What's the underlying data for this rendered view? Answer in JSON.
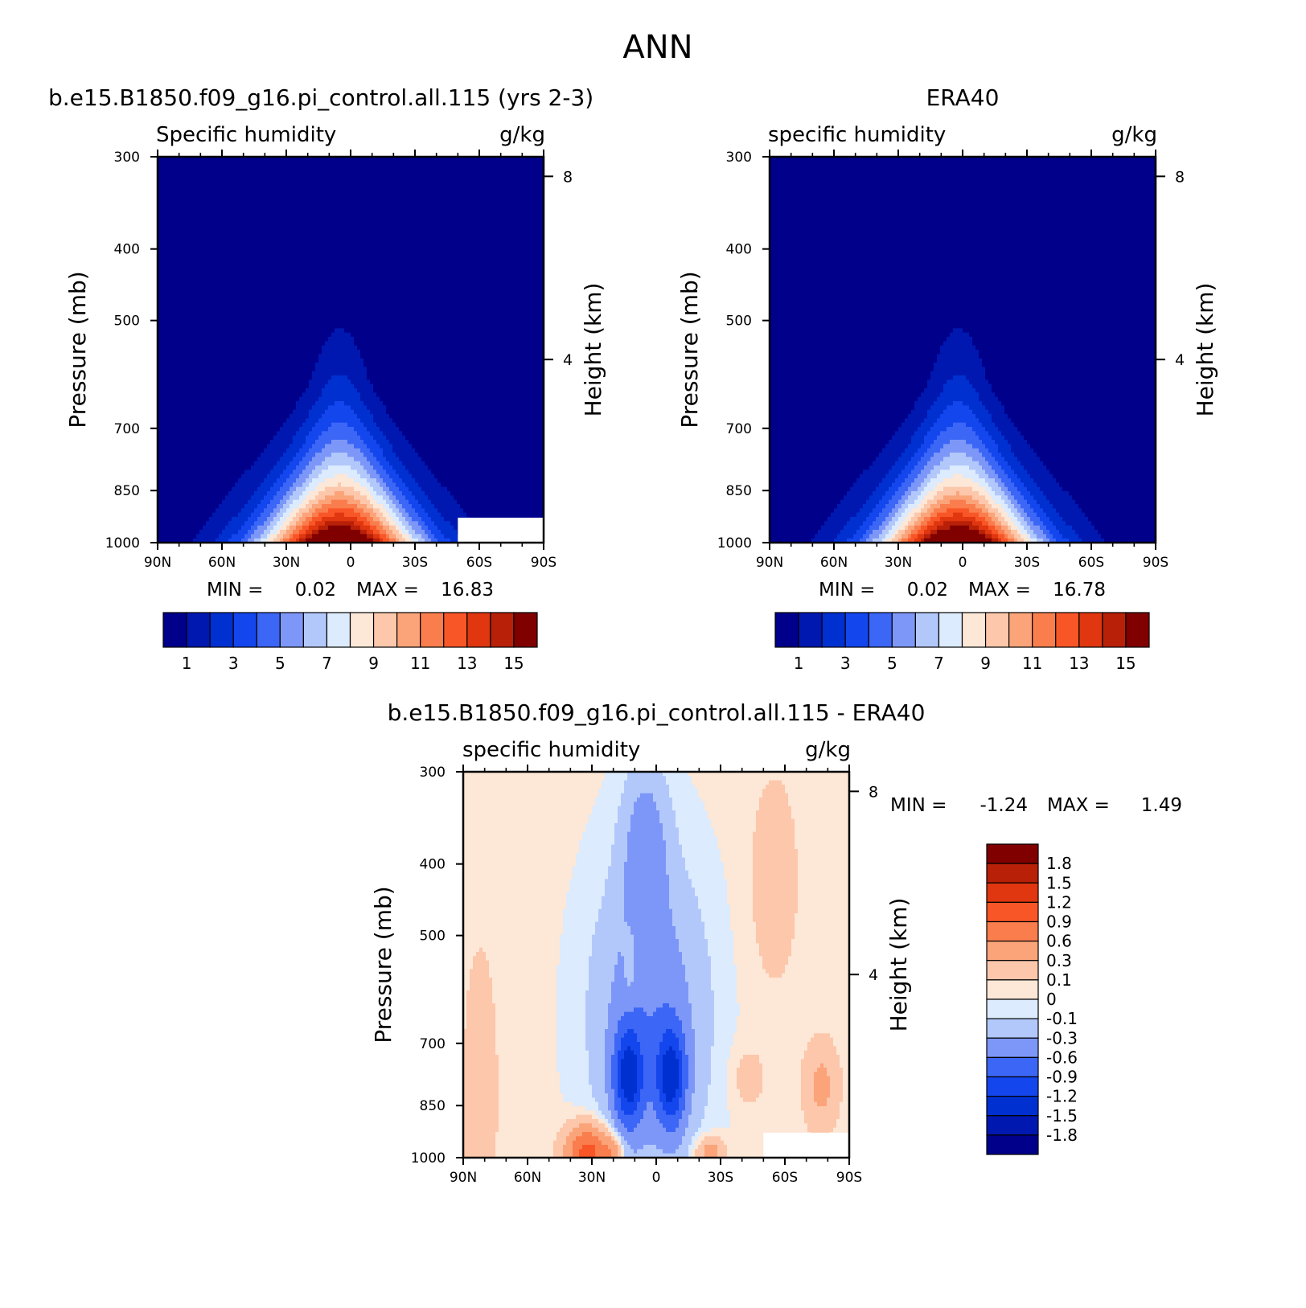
{
  "figure_title": "ANN",
  "colors": {
    "main_scale": [
      "#00008b",
      "#0018b0",
      "#0030d0",
      "#1446ee",
      "#3c66f5",
      "#7d97f8",
      "#b2c8fb",
      "#dcebfd",
      "#fde7d6",
      "#fcc7ab",
      "#fba47a",
      "#fa7d4d",
      "#f95628",
      "#e03710",
      "#b82008",
      "#800000"
    ],
    "diff_scale": [
      "#00008b",
      "#0018b0",
      "#0030d0",
      "#1446ee",
      "#3c66f5",
      "#7d97f8",
      "#b2c8fb",
      "#dcebfd",
      "#fde7d6",
      "#fcc7ab",
      "#fba47a",
      "#fa7d4d",
      "#f95628",
      "#e03710",
      "#b82008",
      "#800000"
    ]
  },
  "chart_data": [
    {
      "type": "heatmap",
      "name": "model",
      "title": "b.e15.B1850.f09_g16.pi_control.all.115 (yrs 2-3)",
      "left_label": "Specific humidity",
      "right_label": "g/kg",
      "ylabel": "Pressure (mb)",
      "ylabel2": "Height (km)",
      "x_ticks": [
        "90N",
        "60N",
        "30N",
        "0",
        "30S",
        "60S",
        "90S"
      ],
      "x_values": [
        90,
        60,
        30,
        0,
        -30,
        -60,
        -90
      ],
      "xlim": [
        90,
        -90
      ],
      "y_ticks": [
        "300",
        "400",
        "500",
        "700",
        "850",
        "1000"
      ],
      "y_values": [
        300,
        400,
        500,
        700,
        850,
        1000
      ],
      "ylim": [
        300,
        1000
      ],
      "height_ticks": [
        "8",
        "4"
      ],
      "height_values_km": [
        8,
        4
      ],
      "min_label": "MIN =",
      "min_value": "0.02",
      "max_label": "MAX =",
      "max_value": "16.83",
      "peak_lat": 5,
      "peak_value": 16.83,
      "top_value_1000": 16.83,
      "colorbar_labels": [
        "1",
        "3",
        "5",
        "7",
        "9",
        "11",
        "13",
        "15"
      ],
      "masked_regions": [
        {
          "lat_from": -50,
          "lat_to": -90,
          "p_from": 925,
          "p_to": 1000
        }
      ]
    },
    {
      "type": "heatmap",
      "name": "obs",
      "title": "ERA40",
      "left_label": "specific humidity",
      "right_label": "g/kg",
      "ylabel": "Pressure (mb)",
      "ylabel2": "Height (km)",
      "x_ticks": [
        "90N",
        "60N",
        "30N",
        "0",
        "30S",
        "60S",
        "90S"
      ],
      "x_values": [
        90,
        60,
        30,
        0,
        -30,
        -60,
        -90
      ],
      "xlim": [
        90,
        -90
      ],
      "y_ticks": [
        "300",
        "400",
        "500",
        "700",
        "850",
        "1000"
      ],
      "y_values": [
        300,
        400,
        500,
        700,
        850,
        1000
      ],
      "ylim": [
        300,
        1000
      ],
      "height_ticks": [
        "8",
        "4"
      ],
      "height_values_km": [
        8,
        4
      ],
      "min_label": "MIN =",
      "min_value": "0.02",
      "max_label": "MAX =",
      "max_value": "16.78",
      "peak_lat": 2,
      "peak_value": 16.78,
      "colorbar_labels": [
        "1",
        "3",
        "5",
        "7",
        "9",
        "11",
        "13",
        "15"
      ],
      "masked_regions": []
    },
    {
      "type": "heatmap",
      "name": "difference",
      "title": "b.e15.B1850.f09_g16.pi_control.all.115 - ERA40",
      "left_label": "specific humidity",
      "right_label": "g/kg",
      "ylabel": "Pressure (mb)",
      "ylabel2": "Height (km)",
      "x_ticks": [
        "90N",
        "60N",
        "30N",
        "0",
        "30S",
        "60S",
        "90S"
      ],
      "x_values": [
        90,
        60,
        30,
        0,
        -30,
        -60,
        -90
      ],
      "xlim": [
        90,
        -90
      ],
      "y_ticks": [
        "300",
        "400",
        "500",
        "700",
        "850",
        "1000"
      ],
      "y_values": [
        300,
        400,
        500,
        700,
        850,
        1000
      ],
      "ylim": [
        300,
        1000
      ],
      "height_ticks": [
        "8",
        "4"
      ],
      "height_values_km": [
        8,
        4
      ],
      "min_label": "MIN =",
      "min_value": "-1.24",
      "max_label": "MAX =",
      "max_value": "1.49",
      "colorbar_labels": [
        "1.8",
        "1.5",
        "1.2",
        "0.9",
        "0.6",
        "0.3",
        "0.1",
        "0",
        "-0.1",
        "-0.3",
        "-0.6",
        "-0.9",
        "-1.2",
        "-1.5",
        "-1.8"
      ],
      "masked_regions": [
        {
          "lat_from": -50,
          "lat_to": -90,
          "p_from": 925,
          "p_to": 1000
        }
      ]
    }
  ]
}
